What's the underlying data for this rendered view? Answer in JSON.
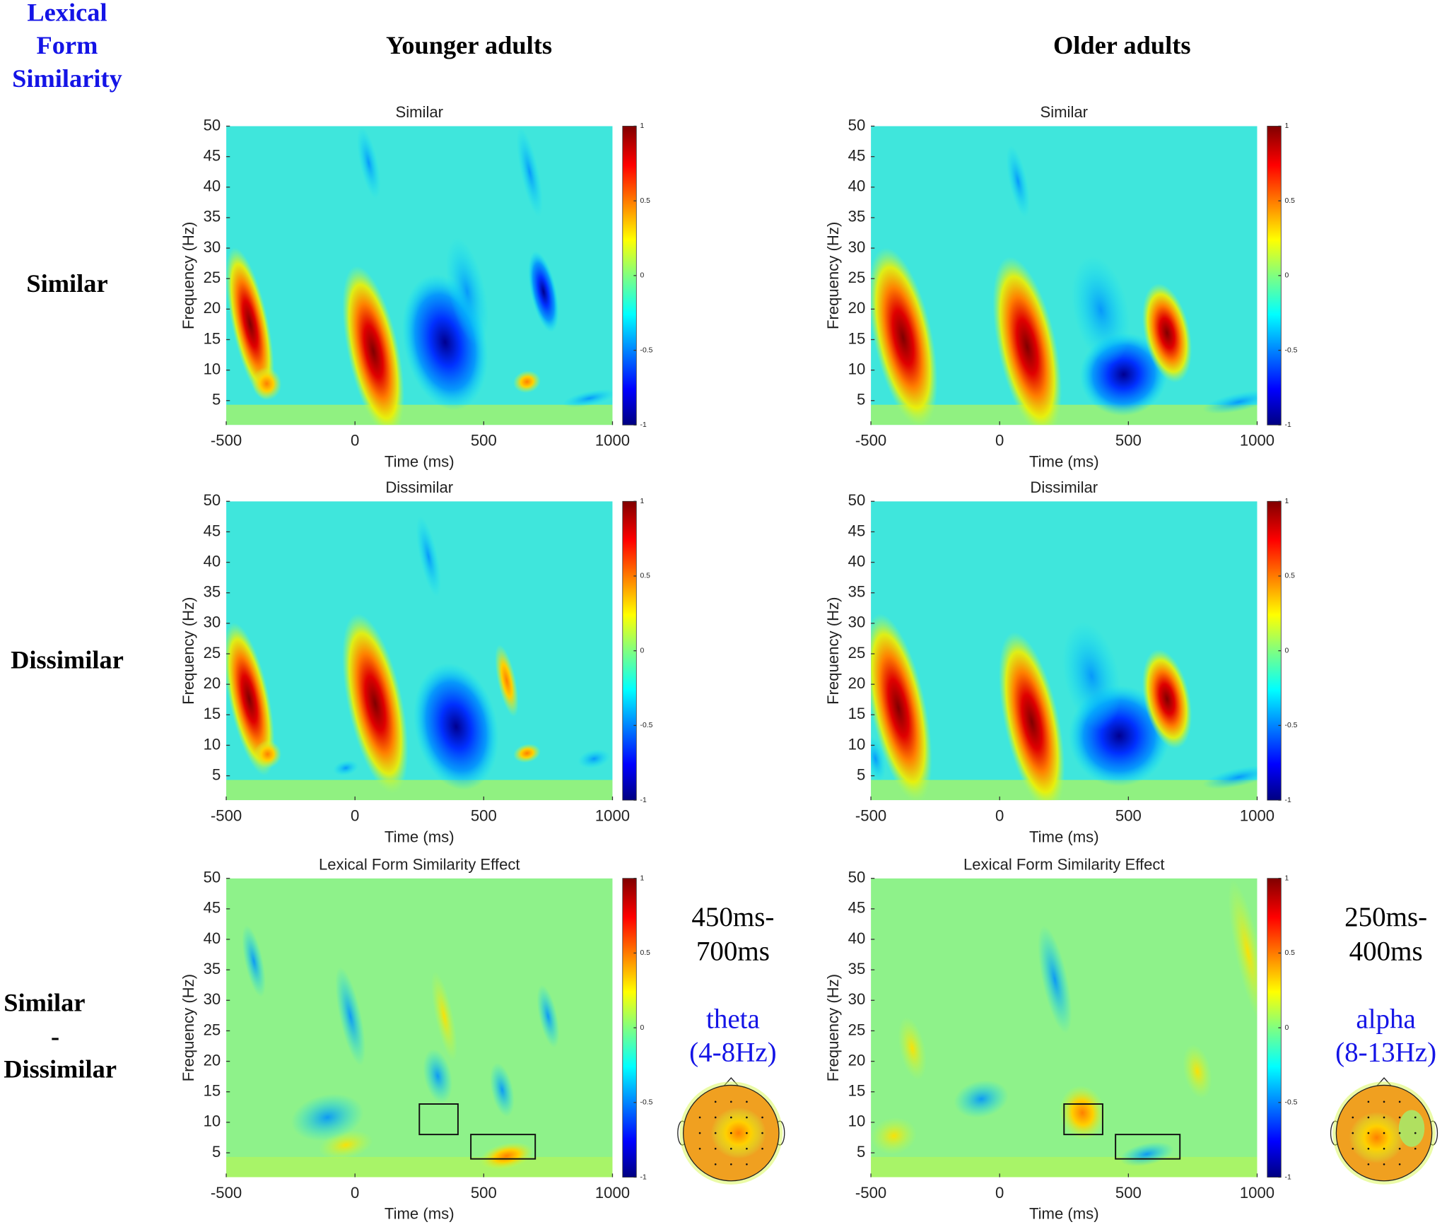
{
  "figure": {
    "corner_label": [
      "Lexical",
      "Form",
      "Similarity"
    ],
    "columns": [
      "Younger adults",
      "Older adults"
    ],
    "rows": [
      [
        "Similar"
      ],
      [
        "Dissimilar"
      ],
      [
        "Similar",
        "-",
        "Dissimilar"
      ]
    ]
  },
  "chart_data": [
    {
      "type": "heatmap",
      "title": "Similar",
      "x_label": "Time (ms)",
      "y_label": "Frequency (Hz)",
      "xlim": [
        -500,
        1000
      ],
      "xticks": [
        -500,
        0,
        500,
        1000
      ],
      "ylim": [
        1,
        50
      ],
      "yticks": [
        5,
        10,
        15,
        20,
        25,
        30,
        35,
        40,
        45,
        50
      ],
      "clim": [
        -1,
        1
      ],
      "cticks": [
        -1,
        -0.5,
        0,
        0.5,
        1
      ]
    },
    {
      "type": "heatmap",
      "title": "Similar",
      "x_label": "Time (ms)",
      "y_label": "Frequency (Hz)",
      "xlim": [
        -500,
        1000
      ],
      "xticks": [
        -500,
        0,
        500,
        1000
      ],
      "ylim": [
        1,
        50
      ],
      "yticks": [
        5,
        10,
        15,
        20,
        25,
        30,
        35,
        40,
        45,
        50
      ],
      "clim": [
        -1,
        1
      ],
      "cticks": [
        -1,
        -0.5,
        0,
        0.5,
        1
      ]
    },
    {
      "type": "heatmap",
      "title": "Dissimilar",
      "x_label": "Time (ms)",
      "y_label": "Frequency (Hz)",
      "xlim": [
        -500,
        1000
      ],
      "xticks": [
        -500,
        0,
        500,
        1000
      ],
      "ylim": [
        1,
        50
      ],
      "yticks": [
        5,
        10,
        15,
        20,
        25,
        30,
        35,
        40,
        45,
        50
      ],
      "clim": [
        -1,
        1
      ],
      "cticks": [
        -1,
        -0.5,
        0,
        0.5,
        1
      ]
    },
    {
      "type": "heatmap",
      "title": "Dissimilar",
      "x_label": "Time (ms)",
      "y_label": "Frequency (Hz)",
      "xlim": [
        -500,
        1000
      ],
      "xticks": [
        -500,
        0,
        500,
        1000
      ],
      "ylim": [
        1,
        50
      ],
      "yticks": [
        5,
        10,
        15,
        20,
        25,
        30,
        35,
        40,
        45,
        50
      ],
      "clim": [
        -1,
        1
      ],
      "cticks": [
        -1,
        -0.5,
        0,
        0.5,
        1
      ]
    },
    {
      "type": "heatmap",
      "title": "Lexical Form Similarity Effect",
      "x_label": "Time (ms)",
      "y_label": "Frequency (Hz)",
      "xlim": [
        -500,
        1000
      ],
      "xticks": [
        -500,
        0,
        500,
        1000
      ],
      "ylim": [
        1,
        50
      ],
      "yticks": [
        5,
        10,
        15,
        20,
        25,
        30,
        35,
        40,
        45,
        50
      ],
      "clim": [
        -1,
        1
      ],
      "cticks": [
        -1,
        -0.5,
        0,
        0.5,
        1
      ],
      "boxes": [
        {
          "x": [
            250,
            400
          ],
          "y": [
            8,
            13
          ]
        },
        {
          "x": [
            450,
            700
          ],
          "y": [
            4,
            8
          ]
        }
      ]
    },
    {
      "type": "heatmap",
      "title": "Lexical Form Similarity Effect",
      "x_label": "Time (ms)",
      "y_label": "Frequency (Hz)",
      "xlim": [
        -500,
        1000
      ],
      "xticks": [
        -500,
        0,
        500,
        1000
      ],
      "ylim": [
        1,
        50
      ],
      "yticks": [
        5,
        10,
        15,
        20,
        25,
        30,
        35,
        40,
        45,
        50
      ],
      "clim": [
        -1,
        1
      ],
      "cticks": [
        -1,
        -0.5,
        0,
        0.5,
        1
      ],
      "boxes": [
        {
          "x": [
            250,
            400
          ],
          "y": [
            8,
            13
          ]
        },
        {
          "x": [
            450,
            700
          ],
          "y": [
            4,
            8
          ]
        }
      ]
    }
  ],
  "annotations": [
    {
      "window": [
        "450ms-",
        "700ms"
      ],
      "band": [
        "theta",
        "(4-8Hz)"
      ]
    },
    {
      "window": [
        "250ms-",
        "400ms"
      ],
      "band": [
        "alpha",
        "(8-13Hz)"
      ]
    }
  ]
}
